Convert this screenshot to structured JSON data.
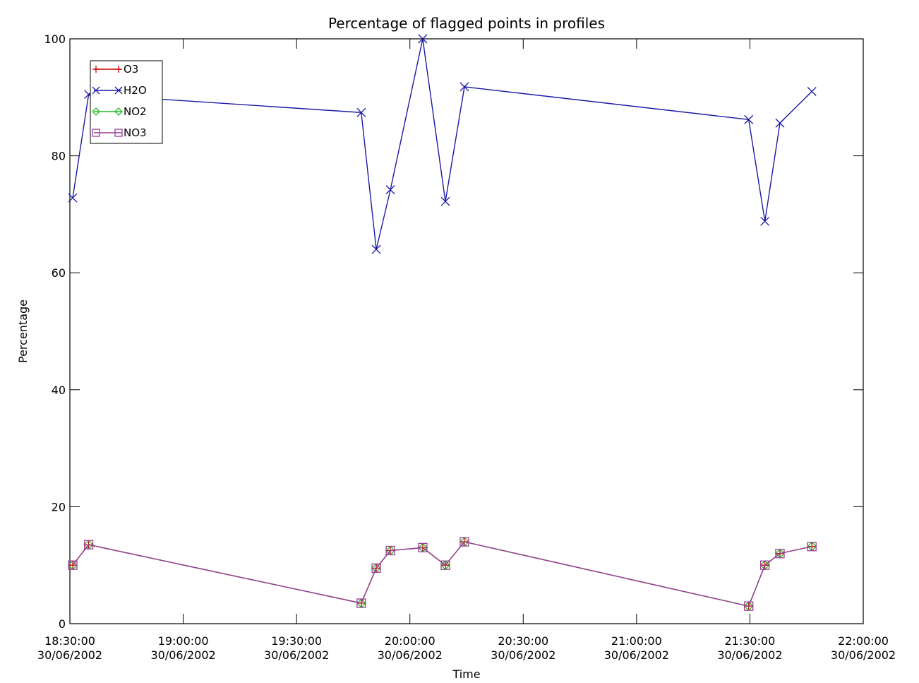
{
  "chart_data": {
    "type": "line",
    "title": "Percentage of flagged points in profiles",
    "xlabel": "Time",
    "ylabel": "Percentage",
    "ylim": [
      0,
      100
    ],
    "xlim": [
      "18:30:00 30/06/2002",
      "22:00:00 30/06/2002"
    ],
    "yticks": [
      "0",
      "20",
      "40",
      "60",
      "80",
      "100"
    ],
    "xticks": [
      {
        "time": "18:30:00",
        "date": "30/06/2002"
      },
      {
        "time": "19:00:00",
        "date": "30/06/2002"
      },
      {
        "time": "19:30:00",
        "date": "30/06/2002"
      },
      {
        "time": "20:00:00",
        "date": "30/06/2002"
      },
      {
        "time": "20:30:00",
        "date": "30/06/2002"
      },
      {
        "time": "21:00:00",
        "date": "30/06/2002"
      },
      {
        "time": "21:30:00",
        "date": "30/06/2002"
      },
      {
        "time": "22:00:00",
        "date": "30/06/2002"
      }
    ],
    "legend_position": "top-left",
    "grid": false,
    "x": [
      "18:30:45",
      "18:34:58",
      "19:47:08",
      "19:51:06",
      "19:54:50",
      "20:03:24",
      "20:09:24",
      "20:14:26",
      "21:29:41",
      "21:33:58",
      "21:37:57",
      "21:46:24"
    ],
    "series": [
      {
        "name": "O3",
        "color": "#cc0000",
        "marker": "plus",
        "values": [
          10,
          13.5,
          3.5,
          9.5,
          12.5,
          13,
          10,
          14,
          3,
          10,
          12,
          13.2
        ]
      },
      {
        "name": "H2O",
        "color": "#1a1aa6",
        "marker": "x",
        "values": [
          72.8,
          90.5,
          87.4,
          64,
          74.2,
          100,
          72.2,
          91.8,
          86.2,
          68.8,
          85.6,
          91
        ]
      },
      {
        "name": "NO2",
        "color": "#22bb22",
        "marker": "diamond",
        "values": [
          10,
          13.5,
          3.5,
          9.5,
          12.5,
          13,
          10,
          14,
          3,
          10,
          12,
          13.2
        ]
      },
      {
        "name": "NO3",
        "color": "#9b3d9b",
        "marker": "square",
        "values": [
          10,
          13.5,
          3.5,
          9.5,
          12.5,
          13,
          10,
          14,
          3,
          10,
          12,
          13.2
        ]
      }
    ]
  }
}
